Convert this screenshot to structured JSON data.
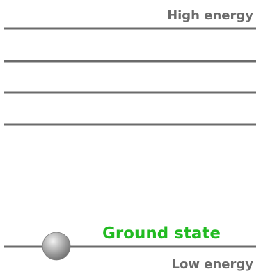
{
  "labels": {
    "high_energy": "High energy",
    "low_energy": "Low energy",
    "ground_state": "Ground state"
  },
  "colors": {
    "level_line": "#6b6b6b",
    "energy_label": "#6b6b6b",
    "ground_state_label": "#22bb22",
    "electron_light": "#f2f2f2",
    "electron_mid": "#a9a9a9",
    "electron_dark": "#6e6e6e"
  },
  "diagram": {
    "level_count": 5,
    "occupied_level": "ground",
    "electron_icon": "electron-sphere"
  }
}
